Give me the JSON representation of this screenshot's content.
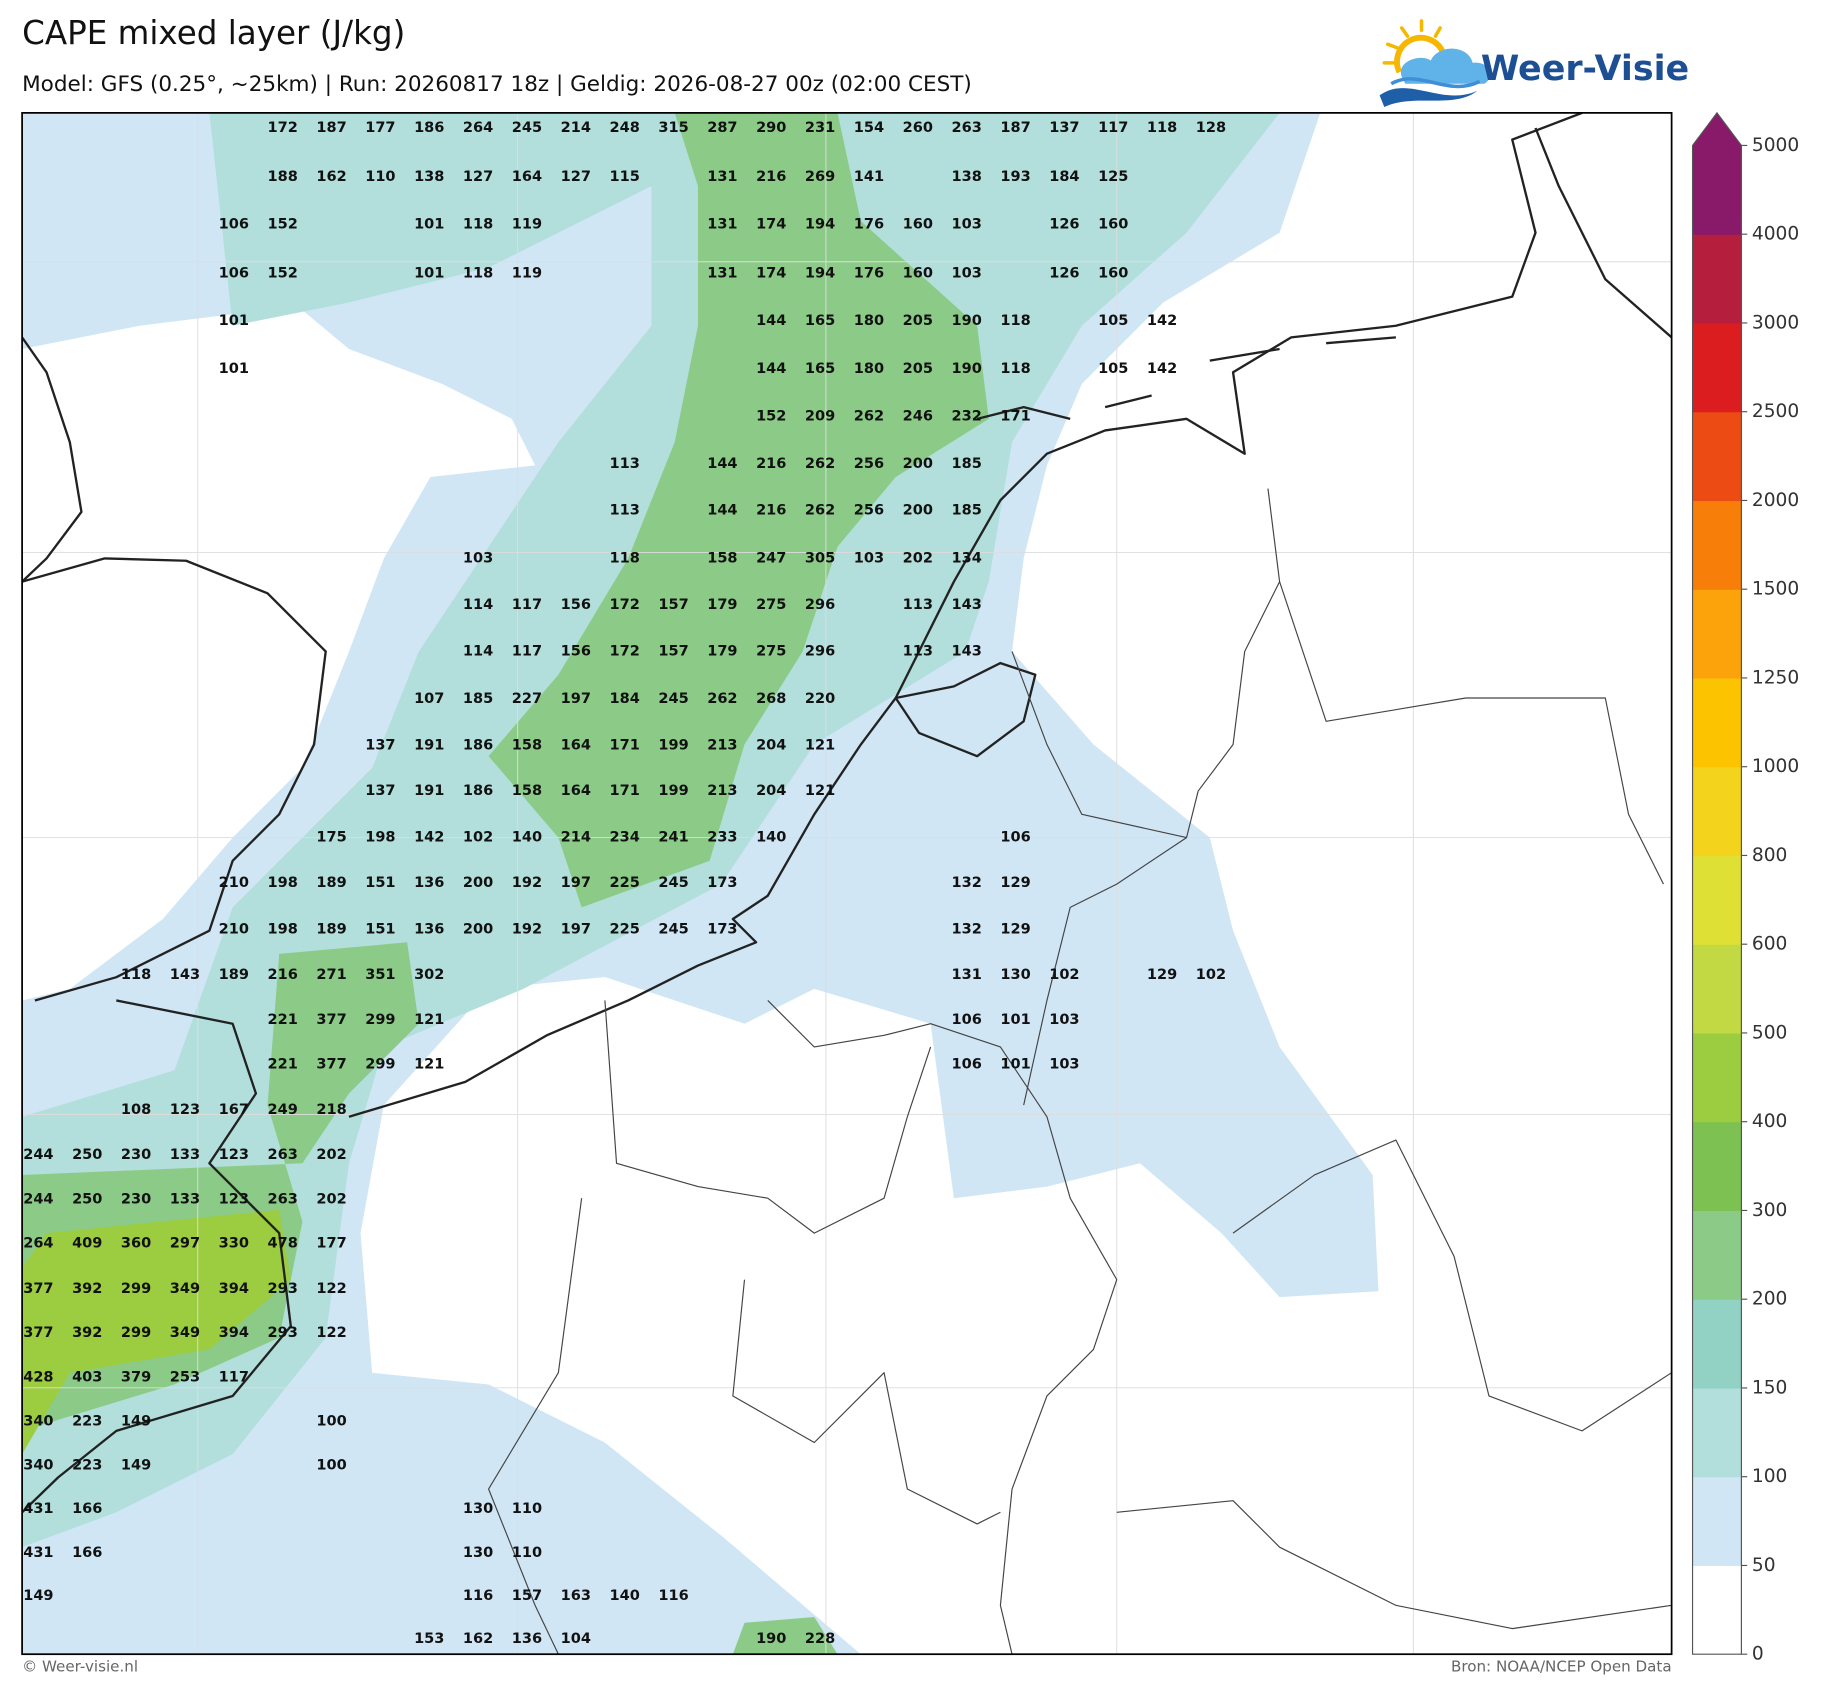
{
  "header": {
    "title": "CAPE mixed layer (J/kg)",
    "subtitle": "Model: GFS (0.25°, ~25km)  |  Run: 20260817 18z  |  Geldig: 2026-08-27 00z (02:00 CEST)"
  },
  "logo": {
    "text": "Weer-Visie"
  },
  "map": {
    "labels": [
      [
        null,
        null,
        null,
        null,
        null,
        172,
        187,
        177,
        186,
        264,
        245,
        214,
        248,
        315,
        287,
        290,
        231,
        154,
        260,
        263,
        187,
        137,
        117,
        118,
        128
      ],
      [
        null,
        null,
        null,
        null,
        null,
        188,
        162,
        110,
        138,
        127,
        164,
        127,
        115,
        null,
        131,
        216,
        269,
        141,
        null,
        138,
        193,
        184,
        125,
        null,
        null
      ],
      [
        null,
        null,
        null,
        null,
        106,
        152,
        null,
        null,
        101,
        118,
        119,
        null,
        null,
        null,
        131,
        174,
        194,
        176,
        160,
        103,
        null,
        126,
        160,
        null,
        null
      ],
      [
        null,
        null,
        null,
        null,
        106,
        152,
        null,
        null,
        101,
        118,
        119,
        null,
        null,
        null,
        131,
        174,
        194,
        176,
        160,
        103,
        null,
        126,
        160,
        null,
        null
      ],
      [
        null,
        null,
        null,
        null,
        101,
        null,
        null,
        null,
        null,
        null,
        null,
        null,
        null,
        null,
        null,
        144,
        165,
        180,
        205,
        190,
        118,
        null,
        105,
        142,
        null
      ],
      [
        null,
        null,
        null,
        null,
        101,
        null,
        null,
        null,
        null,
        null,
        null,
        null,
        null,
        null,
        null,
        144,
        165,
        180,
        205,
        190,
        118,
        null,
        105,
        142,
        null
      ],
      [
        null,
        null,
        null,
        null,
        null,
        null,
        null,
        null,
        null,
        null,
        null,
        null,
        null,
        null,
        null,
        152,
        209,
        262,
        246,
        232,
        171,
        null,
        null,
        null,
        null
      ],
      [
        null,
        null,
        null,
        null,
        null,
        null,
        null,
        null,
        null,
        null,
        null,
        null,
        113,
        null,
        144,
        216,
        262,
        256,
        200,
        185,
        null,
        null,
        null,
        null,
        null
      ],
      [
        null,
        null,
        null,
        null,
        null,
        null,
        null,
        null,
        null,
        null,
        null,
        null,
        113,
        null,
        144,
        216,
        262,
        256,
        200,
        185,
        null,
        null,
        null,
        null,
        null
      ],
      [
        null,
        null,
        null,
        null,
        null,
        null,
        null,
        null,
        null,
        103,
        null,
        null,
        118,
        null,
        158,
        247,
        305,
        103,
        202,
        134,
        null,
        null,
        null,
        null,
        null
      ],
      [
        null,
        null,
        null,
        null,
        null,
        null,
        null,
        null,
        null,
        114,
        117,
        156,
        172,
        157,
        179,
        275,
        296,
        null,
        113,
        143,
        null,
        null,
        null,
        null,
        null
      ],
      [
        null,
        null,
        null,
        null,
        null,
        null,
        null,
        null,
        null,
        114,
        117,
        156,
        172,
        157,
        179,
        275,
        296,
        null,
        113,
        143,
        null,
        null,
        null,
        null,
        null
      ],
      [
        null,
        null,
        null,
        null,
        null,
        null,
        null,
        null,
        107,
        185,
        227,
        197,
        184,
        245,
        262,
        268,
        220,
        null,
        null,
        null,
        null,
        null,
        null,
        null,
        null
      ],
      [
        null,
        null,
        null,
        null,
        null,
        null,
        null,
        137,
        191,
        186,
        158,
        164,
        171,
        199,
        213,
        204,
        121,
        null,
        null,
        null,
        null,
        null,
        null,
        null,
        null
      ],
      [
        null,
        null,
        null,
        null,
        null,
        null,
        null,
        137,
        191,
        186,
        158,
        164,
        171,
        199,
        213,
        204,
        121,
        null,
        null,
        null,
        null,
        null,
        null,
        null,
        null
      ],
      [
        null,
        null,
        null,
        null,
        null,
        null,
        175,
        198,
        142,
        102,
        140,
        214,
        234,
        241,
        233,
        140,
        null,
        null,
        null,
        null,
        106,
        null,
        null,
        null,
        null
      ],
      [
        null,
        null,
        null,
        null,
        210,
        198,
        189,
        151,
        136,
        200,
        192,
        197,
        225,
        245,
        173,
        null,
        null,
        null,
        null,
        132,
        129,
        null,
        null,
        null,
        null
      ],
      [
        null,
        null,
        null,
        null,
        210,
        198,
        189,
        151,
        136,
        200,
        192,
        197,
        225,
        245,
        173,
        null,
        null,
        null,
        null,
        132,
        129,
        null,
        null,
        null,
        null
      ],
      [
        null,
        null,
        118,
        143,
        189,
        216,
        271,
        351,
        302,
        null,
        null,
        null,
        null,
        null,
        null,
        null,
        null,
        null,
        null,
        131,
        130,
        102,
        null,
        129,
        102
      ],
      [
        null,
        null,
        null,
        null,
        null,
        221,
        377,
        299,
        121,
        null,
        null,
        null,
        null,
        null,
        null,
        null,
        null,
        null,
        null,
        106,
        101,
        103,
        null,
        null,
        null
      ],
      [
        null,
        null,
        null,
        null,
        null,
        221,
        377,
        299,
        121,
        null,
        null,
        null,
        null,
        null,
        null,
        null,
        null,
        null,
        null,
        106,
        101,
        103,
        null,
        null,
        null
      ],
      [
        null,
        null,
        108,
        123,
        167,
        249,
        218,
        null,
        null,
        null,
        null,
        null,
        null,
        null,
        null,
        null,
        null,
        null,
        null,
        null,
        null,
        null,
        null,
        null,
        null
      ],
      [
        244,
        250,
        230,
        133,
        123,
        263,
        202,
        null,
        null,
        null,
        null,
        null,
        null,
        null,
        null,
        null,
        null,
        null,
        null,
        null,
        null,
        null,
        null,
        null,
        null
      ],
      [
        244,
        250,
        230,
        133,
        123,
        263,
        202,
        null,
        null,
        null,
        null,
        null,
        null,
        null,
        null,
        null,
        null,
        null,
        null,
        null,
        null,
        null,
        null,
        null,
        null
      ],
      [
        264,
        409,
        360,
        297,
        330,
        478,
        177,
        null,
        null,
        null,
        null,
        null,
        null,
        null,
        null,
        null,
        null,
        null,
        null,
        null,
        null,
        null,
        null,
        null,
        null
      ],
      [
        377,
        392,
        299,
        349,
        394,
        293,
        122,
        null,
        null,
        null,
        null,
        null,
        null,
        null,
        null,
        null,
        null,
        null,
        null,
        null,
        null,
        null,
        null,
        null,
        null
      ],
      [
        377,
        392,
        299,
        349,
        394,
        293,
        122,
        null,
        null,
        null,
        null,
        null,
        null,
        null,
        null,
        null,
        null,
        null,
        null,
        null,
        null,
        null,
        null,
        null,
        null
      ],
      [
        428,
        403,
        379,
        253,
        117,
        null,
        null,
        null,
        null,
        null,
        null,
        null,
        null,
        null,
        null,
        null,
        null,
        null,
        null,
        null,
        null,
        null,
        null,
        null,
        null
      ],
      [
        340,
        223,
        149,
        null,
        null,
        null,
        100,
        null,
        null,
        null,
        null,
        null,
        null,
        null,
        null,
        null,
        null,
        null,
        null,
        null,
        null,
        null,
        null,
        null,
        null
      ],
      [
        340,
        223,
        149,
        null,
        null,
        null,
        100,
        null,
        null,
        null,
        null,
        null,
        null,
        null,
        null,
        null,
        null,
        null,
        null,
        null,
        null,
        null,
        null,
        null,
        null
      ],
      [
        431,
        166,
        null,
        null,
        null,
        null,
        null,
        null,
        null,
        130,
        110,
        null,
        null,
        null,
        null,
        null,
        null,
        null,
        null,
        null,
        null,
        null,
        null,
        null,
        null
      ],
      [
        431,
        166,
        null,
        null,
        null,
        null,
        null,
        null,
        null,
        130,
        110,
        null,
        null,
        null,
        null,
        null,
        null,
        null,
        null,
        null,
        null,
        null,
        null,
        null,
        null
      ],
      [
        149,
        null,
        null,
        null,
        null,
        null,
        null,
        null,
        null,
        116,
        157,
        163,
        140,
        116,
        null,
        null,
        null,
        null,
        null,
        null,
        null,
        null,
        null,
        null,
        null
      ],
      [
        null,
        null,
        null,
        null,
        null,
        null,
        null,
        null,
        153,
        162,
        136,
        104,
        null,
        null,
        null,
        190,
        228,
        null,
        null,
        null,
        null,
        null,
        null,
        null,
        null
      ]
    ]
  },
  "colorbar": {
    "levels": [
      0,
      50,
      100,
      150,
      200,
      300,
      400,
      500,
      600,
      800,
      1000,
      1250,
      1500,
      2000,
      2500,
      3000,
      4000,
      5000
    ],
    "colors": [
      "#ffffff",
      "#d0e6f5",
      "#b2dfdc",
      "#91d2c4",
      "#8ccb87",
      "#7cc152",
      "#9ccc3f",
      "#c2d944",
      "#dfe036",
      "#f3d31b",
      "#fcc400",
      "#fca20a",
      "#f77e08",
      "#ec4c13",
      "#dc1d1f",
      "#b51f3d",
      "#891a69"
    ]
  },
  "footer": {
    "left": "© Weer-visie.nl",
    "right": "Bron: NOAA/NCEP Open Data"
  }
}
